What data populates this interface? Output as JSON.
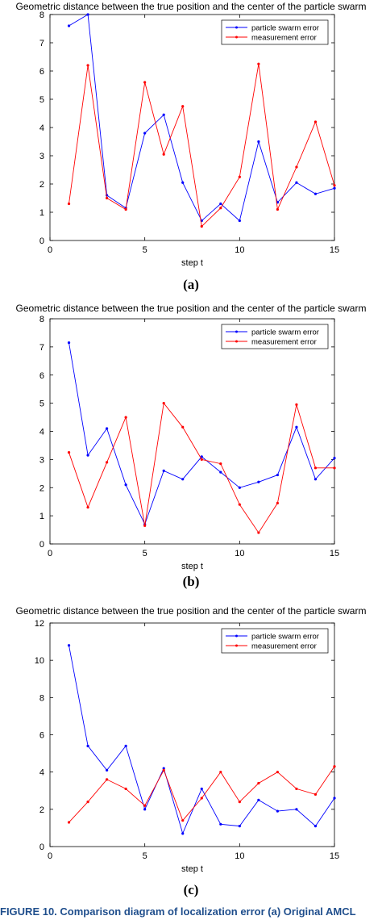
{
  "charts": [
    {
      "panel_label": "(a)",
      "chart_data": {
        "type": "line",
        "title": "Geometric distance between the true position and the center of the particle swarm",
        "xlabel": "step t",
        "ylabel": "",
        "xlim": [
          0,
          15
        ],
        "ylim": [
          0,
          8
        ],
        "xticks": [
          0,
          5,
          10,
          15
        ],
        "yticks": [
          0,
          1,
          2,
          3,
          4,
          5,
          6,
          7,
          8
        ],
        "legend_position": "top-right",
        "grid": false,
        "x": [
          1,
          2,
          3,
          4,
          5,
          6,
          7,
          8,
          9,
          10,
          11,
          12,
          13,
          14,
          15
        ],
        "series": [
          {
            "name": "particle swarm error",
            "color": "#0000ff",
            "values": [
              7.6,
              8.0,
              1.6,
              1.15,
              3.8,
              4.45,
              2.05,
              0.7,
              1.3,
              0.7,
              3.5,
              1.35,
              2.05,
              1.65,
              1.85
            ]
          },
          {
            "name": "measurement error",
            "color": "#ff0000",
            "values": [
              1.3,
              6.2,
              1.5,
              1.1,
              5.6,
              3.05,
              4.75,
              0.5,
              1.15,
              2.25,
              6.25,
              1.1,
              2.6,
              4.2,
              1.95
            ]
          }
        ]
      }
    },
    {
      "panel_label": "(b)",
      "chart_data": {
        "type": "line",
        "title": "Geometric distance between the true position and the center of the particle swarm",
        "xlabel": "step t",
        "ylabel": "",
        "xlim": [
          0,
          15
        ],
        "ylim": [
          0,
          8
        ],
        "xticks": [
          0,
          5,
          10,
          15
        ],
        "yticks": [
          0,
          1,
          2,
          3,
          4,
          5,
          6,
          7,
          8
        ],
        "legend_position": "top-right",
        "grid": false,
        "x": [
          1,
          2,
          3,
          4,
          5,
          6,
          7,
          8,
          9,
          10,
          11,
          12,
          13,
          14,
          15
        ],
        "series": [
          {
            "name": "particle swarm error",
            "color": "#0000ff",
            "values": [
              7.15,
              3.15,
              4.1,
              2.1,
              0.7,
              2.6,
              2.3,
              3.1,
              2.55,
              2.0,
              2.2,
              2.45,
              4.15,
              2.3,
              3.05
            ]
          },
          {
            "name": "measurement error",
            "color": "#ff0000",
            "values": [
              3.25,
              1.3,
              2.9,
              4.5,
              0.65,
              5.0,
              4.15,
              3.0,
              2.85,
              1.4,
              0.4,
              1.45,
              4.95,
              2.7,
              2.7
            ]
          }
        ]
      }
    },
    {
      "panel_label": "(c)",
      "chart_data": {
        "type": "line",
        "title": "Geometric distance between the true position and the center of the particle swarm",
        "xlabel": "step t",
        "ylabel": "",
        "xlim": [
          0,
          15
        ],
        "ylim": [
          0,
          12
        ],
        "xticks": [
          0,
          5,
          10,
          15
        ],
        "yticks": [
          0,
          2,
          4,
          6,
          8,
          10,
          12
        ],
        "legend_position": "top-right",
        "grid": false,
        "x": [
          1,
          2,
          3,
          4,
          5,
          6,
          7,
          8,
          9,
          10,
          11,
          12,
          13,
          14,
          15
        ],
        "series": [
          {
            "name": "particle swarm error",
            "color": "#0000ff",
            "values": [
              10.8,
              5.4,
              4.1,
              5.4,
              2.0,
              4.2,
              0.7,
              3.1,
              1.2,
              1.1,
              2.5,
              1.9,
              2.0,
              1.1,
              2.6
            ]
          },
          {
            "name": "measurement error",
            "color": "#ff0000",
            "values": [
              1.3,
              2.4,
              3.6,
              3.1,
              2.2,
              4.1,
              1.4,
              2.6,
              4.0,
              2.4,
              3.4,
              4.0,
              3.1,
              2.8,
              4.3
            ]
          }
        ]
      }
    }
  ],
  "figure_caption": "FIGURE 10. Comparison diagram of localization error (a) Original AMCL"
}
